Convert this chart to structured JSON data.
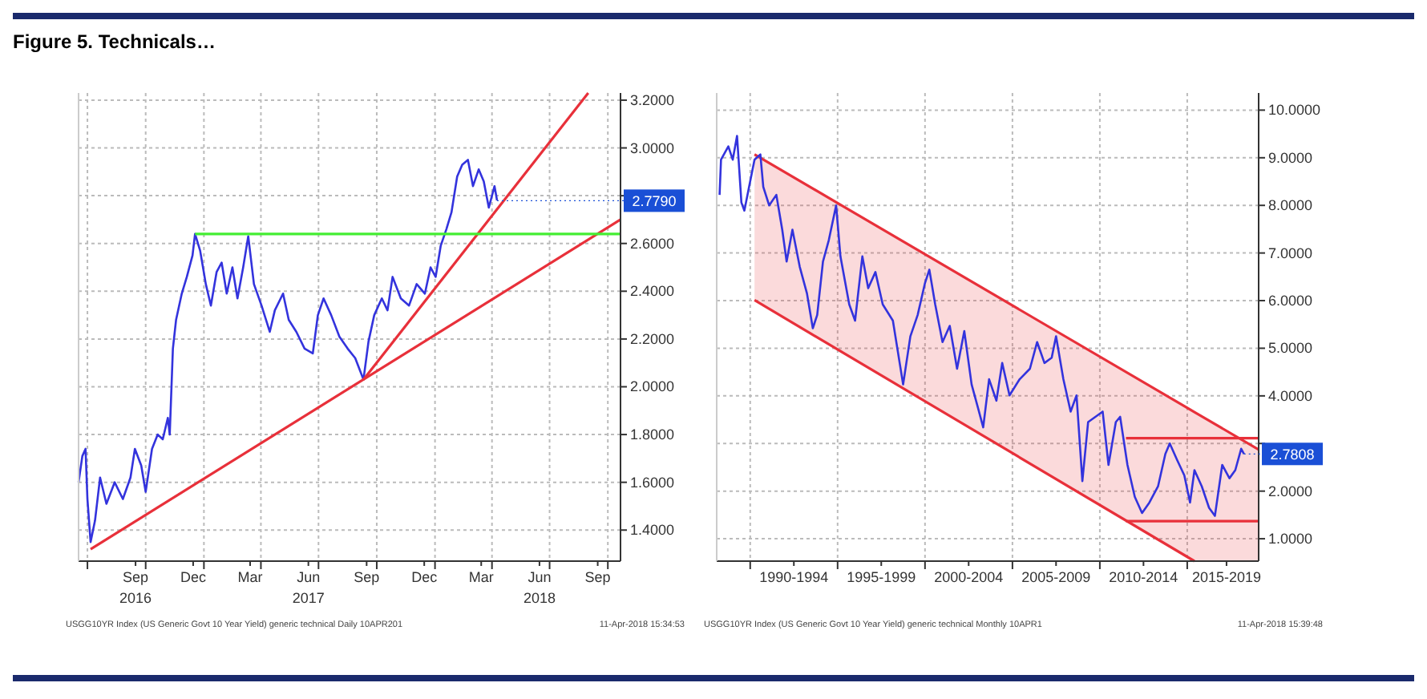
{
  "chart_data": [
    {
      "type": "line",
      "title": "Figure 5. Technicals…",
      "xlim": [
        "2016-06-17",
        "2018-10-21"
      ],
      "ylim": [
        1.27,
        3.23
      ],
      "xticks": [
        {
          "value": "2016-07-01",
          "label": null
        },
        {
          "value": "2016-09-15",
          "label": "Sep\n2016"
        },
        {
          "value": "2016-10-01",
          "label": null
        },
        {
          "value": "2016-12-15",
          "label": "Dec"
        },
        {
          "value": "2017-01-01",
          "label": null
        },
        {
          "value": "2017-03-15",
          "label": "Mar"
        },
        {
          "value": "2017-04-01",
          "label": null
        },
        {
          "value": "2017-06-15",
          "label": "Jun\n2017"
        },
        {
          "value": "2017-07-01",
          "label": null
        },
        {
          "value": "2017-09-15",
          "label": "Sep"
        },
        {
          "value": "2017-10-01",
          "label": null
        },
        {
          "value": "2017-12-15",
          "label": "Dec"
        },
        {
          "value": "2018-01-01",
          "label": null
        },
        {
          "value": "2018-03-15",
          "label": "Mar"
        },
        {
          "value": "2018-04-01",
          "label": null
        },
        {
          "value": "2018-06-15",
          "label": "Jun\n2018"
        },
        {
          "value": "2018-07-01",
          "label": null
        },
        {
          "value": "2018-09-15",
          "label": "Sep"
        },
        {
          "value": "2018-10-01",
          "label": null
        }
      ],
      "yticks": [
        {
          "value": 1.4,
          "label": "1.4000"
        },
        {
          "value": 1.6,
          "label": "1.6000"
        },
        {
          "value": 1.8,
          "label": "1.8000"
        },
        {
          "value": 2.0,
          "label": "2.0000"
        },
        {
          "value": 2.2,
          "label": "2.2000"
        },
        {
          "value": 2.4,
          "label": "2.4000"
        },
        {
          "value": 2.6,
          "label": "2.6000"
        },
        {
          "value": 2.8,
          "label": null
        },
        {
          "value": 3.0,
          "label": "3.0000"
        },
        {
          "value": 3.2,
          "label": "3.2000"
        }
      ],
      "grid": true,
      "series": [
        {
          "type": "line",
          "color": "#3333dd",
          "x": [
            "2016-06-17",
            "2016-06-23",
            "2016-06-28",
            "2016-07-01",
            "2016-07-06",
            "2016-07-13",
            "2016-07-21",
            "2016-07-31",
            "2016-08-13",
            "2016-08-26",
            "2016-09-07",
            "2016-09-14",
            "2016-09-24",
            "2016-10-01",
            "2016-10-11",
            "2016-10-20",
            "2016-10-28",
            "2016-11-05",
            "2016-11-08",
            "2016-11-13",
            "2016-11-18",
            "2016-11-27",
            "2016-12-05",
            "2016-12-14",
            "2016-12-18",
            "2016-12-26",
            "2017-01-04",
            "2017-01-12",
            "2017-01-21",
            "2017-01-29",
            "2017-02-06",
            "2017-02-15",
            "2017-02-23",
            "2017-03-04",
            "2017-03-12",
            "2017-03-21",
            "2017-04-02",
            "2017-04-15",
            "2017-04-23",
            "2017-05-06",
            "2017-05-15",
            "2017-05-27",
            "2017-06-09",
            "2017-06-22",
            "2017-06-30",
            "2017-07-09",
            "2017-07-21",
            "2017-08-03",
            "2017-08-16",
            "2017-08-28",
            "2017-09-10",
            "2017-09-18",
            "2017-09-27",
            "2017-10-09",
            "2017-10-18",
            "2017-10-26",
            "2017-11-08",
            "2017-11-21",
            "2017-12-03",
            "2017-12-16",
            "2017-12-25",
            "2018-01-02",
            "2018-01-10",
            "2018-01-19",
            "2018-01-27",
            "2018-02-05",
            "2018-02-13",
            "2018-02-22",
            "2018-03-02",
            "2018-03-11",
            "2018-03-19",
            "2018-03-27",
            "2018-04-05",
            "2018-04-09"
          ],
          "values": [
            1.6,
            1.71,
            1.74,
            1.53,
            1.35,
            1.44,
            1.62,
            1.51,
            1.6,
            1.53,
            1.62,
            1.74,
            1.67,
            1.56,
            1.74,
            1.8,
            1.78,
            1.87,
            1.8,
            2.16,
            2.28,
            2.39,
            2.46,
            2.55,
            2.64,
            2.57,
            2.43,
            2.34,
            2.48,
            2.52,
            2.39,
            2.5,
            2.37,
            2.5,
            2.63,
            2.43,
            2.34,
            2.23,
            2.32,
            2.39,
            2.28,
            2.23,
            2.16,
            2.14,
            2.3,
            2.37,
            2.3,
            2.21,
            2.16,
            2.12,
            2.03,
            2.19,
            2.3,
            2.37,
            2.32,
            2.46,
            2.37,
            2.34,
            2.43,
            2.39,
            2.5,
            2.46,
            2.59,
            2.66,
            2.73,
            2.88,
            2.93,
            2.95,
            2.84,
            2.91,
            2.86,
            2.75,
            2.84,
            2.78
          ]
        },
        {
          "type": "line",
          "color": "#e8303a",
          "x": [
            "2016-07-06",
            "2018-10-21"
          ],
          "values": [
            1.32,
            2.7
          ]
        },
        {
          "type": "line",
          "color": "#e8303a",
          "x": [
            "2017-09-10",
            "2018-08-31"
          ],
          "values": [
            2.03,
            3.23
          ]
        },
        {
          "type": "line",
          "color": "#44ee33",
          "x": [
            "2016-12-18",
            "2018-10-21"
          ],
          "values": [
            2.64,
            2.64
          ]
        }
      ],
      "annotations": [
        {
          "text": "2.7790",
          "x": "2018-04-09",
          "y": 2.779
        },
        "USGG10YR Index (US Generic Govt 10 Year Yield) generic technical Daily 10APR201",
        "11-Apr-2018 15:34:53"
      ]
    },
    {
      "type": "line",
      "xlim": [
        "1988-02",
        "2019-02"
      ],
      "ylim": [
        0.53,
        10.36
      ],
      "xticks": [
        {
          "value": "1990-01",
          "label": null
        },
        {
          "value": "1992-07",
          "label": "1990-1994"
        },
        {
          "value": "1995-01",
          "label": null
        },
        {
          "value": "1997-07",
          "label": "1995-1999"
        },
        {
          "value": "2000-01",
          "label": null
        },
        {
          "value": "2002-07",
          "label": "2000-2004"
        },
        {
          "value": "2005-01",
          "label": null
        },
        {
          "value": "2007-07",
          "label": "2005-2009"
        },
        {
          "value": "2010-01",
          "label": null
        },
        {
          "value": "2012-07",
          "label": "2010-2014"
        },
        {
          "value": "2015-01",
          "label": null
        },
        {
          "value": "2017-04",
          "label": "2015-2019"
        }
      ],
      "yticks": [
        {
          "value": 1,
          "label": "1.0000"
        },
        {
          "value": 2,
          "label": "2.0000"
        },
        {
          "value": 3,
          "label": null
        },
        {
          "value": 4,
          "label": "4.0000"
        },
        {
          "value": 5,
          "label": "5.0000"
        },
        {
          "value": 6,
          "label": "6.0000"
        },
        {
          "value": 7,
          "label": "7.0000"
        },
        {
          "value": 8,
          "label": "8.0000"
        },
        {
          "value": 9,
          "label": "9.0000"
        },
        {
          "value": 10,
          "label": "10.0000"
        }
      ],
      "grid": true,
      "series": [
        {
          "type": "line",
          "color": "#e8303a",
          "x": [
            "1990-04",
            "2015-06",
            "2019-02"
          ],
          "values": [
            9.07,
            3.66,
            2.87
          ],
          "lower": [
            6.01,
            0.53,
            0.53
          ],
          "upper": [
            9.07,
            3.66,
            2.87
          ]
        },
        {
          "type": "line",
          "color": "#e8303a",
          "x": [
            "1990-04",
            "2015-06"
          ],
          "values": [
            6.01,
            0.53
          ]
        },
        {
          "type": "line",
          "color": "#e8303a",
          "x": [
            "2011-07",
            "2019-02"
          ],
          "values": [
            3.11,
            3.11
          ]
        },
        {
          "type": "line",
          "color": "#e8303a",
          "x": [
            "2011-07",
            "2019-02"
          ],
          "values": [
            1.37,
            1.37
          ]
        },
        {
          "type": "line",
          "color": "#3333dd",
          "x": [
            "1988-04",
            "1988-05",
            "1988-10",
            "1989-01",
            "1989-04",
            "1989-07",
            "1989-09",
            "1990-01",
            "1990-04",
            "1990-08",
            "1990-10",
            "1991-02",
            "1991-07",
            "1991-11",
            "1992-02",
            "1992-06",
            "1992-11",
            "1993-04",
            "1993-08",
            "1993-11",
            "1994-03",
            "1994-07",
            "1994-12",
            "1995-03",
            "1995-09",
            "1996-01",
            "1996-06",
            "1996-10",
            "1997-03",
            "1997-08",
            "1998-03",
            "1998-10",
            "1999-03",
            "1999-08",
            "2000-01",
            "2000-04",
            "2000-08",
            "2001-01",
            "2001-06",
            "2001-11",
            "2002-04",
            "2002-09",
            "2003-01",
            "2003-05",
            "2003-09",
            "2004-02",
            "2004-06",
            "2004-11",
            "2005-06",
            "2006-01",
            "2006-06",
            "2006-11",
            "2007-04",
            "2007-07",
            "2007-12",
            "2008-05",
            "2008-09",
            "2009-01",
            "2009-05",
            "2009-10",
            "2010-03",
            "2010-07",
            "2010-12",
            "2011-03",
            "2011-08",
            "2012-01",
            "2012-06",
            "2012-11",
            "2013-05",
            "2013-10",
            "2014-01",
            "2014-06",
            "2014-11",
            "2015-03",
            "2015-06",
            "2015-11",
            "2016-04",
            "2016-08",
            "2017-01",
            "2017-06",
            "2017-10",
            "2018-02",
            "2018-04"
          ],
          "values": [
            8.22,
            8.96,
            9.24,
            8.96,
            9.46,
            8.06,
            7.89,
            8.51,
            8.96,
            9.07,
            8.39,
            8.0,
            8.22,
            7.49,
            6.82,
            7.49,
            6.71,
            6.15,
            5.42,
            5.7,
            6.82,
            7.27,
            8.0,
            6.93,
            5.92,
            5.58,
            6.93,
            6.26,
            6.6,
            5.92,
            5.58,
            4.24,
            5.25,
            5.7,
            6.37,
            6.65,
            5.92,
            5.13,
            5.47,
            4.57,
            5.36,
            4.24,
            3.79,
            3.34,
            4.35,
            3.9,
            4.69,
            4.01,
            4.35,
            4.57,
            5.13,
            4.69,
            4.8,
            5.25,
            4.35,
            3.67,
            4.01,
            2.21,
            3.45,
            3.56,
            3.67,
            2.55,
            3.45,
            3.56,
            2.55,
            1.88,
            1.54,
            1.76,
            2.1,
            2.78,
            3.0,
            2.66,
            2.33,
            1.76,
            2.44,
            2.1,
            1.65,
            1.48,
            2.55,
            2.27,
            2.44,
            2.89,
            2.78
          ]
        }
      ],
      "annotations": [
        {
          "text": "2.7808",
          "x": "2018-04",
          "y": 2.7808
        },
        "USGG10YR Index (US Generic Govt 10 Year Yield) generic technical Monthly 10APR1",
        "11-Apr-2018 15:39:48"
      ]
    }
  ]
}
